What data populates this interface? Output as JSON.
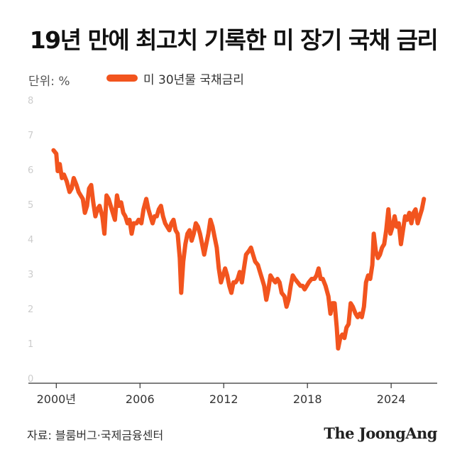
{
  "header": {
    "title": "19년 만에 최고치 기록한 미 장기 국채 금리",
    "unit_label": "단위: %",
    "legend_label": "미 30년물 국채금리"
  },
  "footer": {
    "source": "자료: 블룸버그·국제금융센터",
    "brand": "The JoongAng"
  },
  "colors": {
    "series": "#f2541e",
    "axis": "#333333",
    "tick_text": "#cccccc",
    "x_tick_text": "#333333"
  },
  "chart_data": {
    "type": "line",
    "title": "19년 만에 최고치 기록한 미 장기 국채 금리",
    "unit": "%",
    "ylim": [
      0,
      8
    ],
    "yticks": [
      0,
      1,
      2,
      3,
      4,
      5,
      6,
      7,
      8
    ],
    "xlim": [
      1998.0,
      2027.3
    ],
    "xticks": [
      {
        "value": 2000,
        "label": "2000년"
      },
      {
        "value": 2006,
        "label": "2006"
      },
      {
        "value": 2012,
        "label": "2012"
      },
      {
        "value": 2018,
        "label": "2018"
      },
      {
        "value": 2024,
        "label": "2024"
      }
    ],
    "grid": false,
    "legend_position": "top-left",
    "series": [
      {
        "name": "미 30년물 국채금리",
        "points": [
          [
            1999.8,
            6.7
          ],
          [
            2000.0,
            6.6
          ],
          [
            2000.1,
            6.1
          ],
          [
            2000.25,
            6.3
          ],
          [
            2000.4,
            5.9
          ],
          [
            2000.55,
            6.0
          ],
          [
            2000.75,
            5.8
          ],
          [
            2000.95,
            5.5
          ],
          [
            2001.1,
            5.6
          ],
          [
            2001.25,
            5.9
          ],
          [
            2001.45,
            5.7
          ],
          [
            2001.6,
            5.5
          ],
          [
            2001.75,
            5.4
          ],
          [
            2001.9,
            5.3
          ],
          [
            2002.05,
            4.9
          ],
          [
            2002.2,
            5.1
          ],
          [
            2002.35,
            5.6
          ],
          [
            2002.5,
            5.7
          ],
          [
            2002.65,
            5.2
          ],
          [
            2002.8,
            4.8
          ],
          [
            2002.95,
            5.0
          ],
          [
            2003.1,
            5.1
          ],
          [
            2003.3,
            4.8
          ],
          [
            2003.45,
            4.3
          ],
          [
            2003.6,
            5.4
          ],
          [
            2003.75,
            5.3
          ],
          [
            2003.9,
            5.1
          ],
          [
            2004.05,
            4.9
          ],
          [
            2004.2,
            4.7
          ],
          [
            2004.35,
            5.4
          ],
          [
            2004.5,
            5.1
          ],
          [
            2004.65,
            5.2
          ],
          [
            2004.8,
            4.9
          ],
          [
            2004.95,
            4.8
          ],
          [
            2005.1,
            4.6
          ],
          [
            2005.25,
            4.7
          ],
          [
            2005.4,
            4.3
          ],
          [
            2005.55,
            4.6
          ],
          [
            2005.75,
            4.6
          ],
          [
            2005.9,
            4.7
          ],
          [
            2006.1,
            4.6
          ],
          [
            2006.25,
            5.0
          ],
          [
            2006.45,
            5.3
          ],
          [
            2006.6,
            5.0
          ],
          [
            2006.75,
            4.8
          ],
          [
            2006.9,
            4.6
          ],
          [
            2007.05,
            4.8
          ],
          [
            2007.2,
            4.8
          ],
          [
            2007.35,
            5.0
          ],
          [
            2007.5,
            5.1
          ],
          [
            2007.65,
            4.8
          ],
          [
            2007.8,
            4.6
          ],
          [
            2007.95,
            4.5
          ],
          [
            2008.1,
            4.4
          ],
          [
            2008.25,
            4.6
          ],
          [
            2008.4,
            4.7
          ],
          [
            2008.55,
            4.4
          ],
          [
            2008.7,
            4.3
          ],
          [
            2008.85,
            3.6
          ],
          [
            2008.95,
            2.6
          ],
          [
            2009.1,
            3.5
          ],
          [
            2009.25,
            4.0
          ],
          [
            2009.4,
            4.3
          ],
          [
            2009.55,
            4.4
          ],
          [
            2009.7,
            4.1
          ],
          [
            2009.85,
            4.3
          ],
          [
            2010.0,
            4.6
          ],
          [
            2010.15,
            4.5
          ],
          [
            2010.3,
            4.3
          ],
          [
            2010.45,
            4.0
          ],
          [
            2010.6,
            3.7
          ],
          [
            2010.75,
            4.0
          ],
          [
            2010.9,
            4.3
          ],
          [
            2011.05,
            4.7
          ],
          [
            2011.2,
            4.5
          ],
          [
            2011.35,
            4.2
          ],
          [
            2011.5,
            3.9
          ],
          [
            2011.65,
            3.3
          ],
          [
            2011.8,
            2.9
          ],
          [
            2011.95,
            3.1
          ],
          [
            2012.1,
            3.3
          ],
          [
            2012.25,
            3.1
          ],
          [
            2012.4,
            2.8
          ],
          [
            2012.55,
            2.6
          ],
          [
            2012.7,
            2.9
          ],
          [
            2012.85,
            2.9
          ],
          [
            2013.0,
            3.0
          ],
          [
            2013.15,
            3.2
          ],
          [
            2013.3,
            2.9
          ],
          [
            2013.45,
            3.3
          ],
          [
            2013.6,
            3.7
          ],
          [
            2013.8,
            3.8
          ],
          [
            2013.95,
            3.9
          ],
          [
            2014.1,
            3.7
          ],
          [
            2014.25,
            3.5
          ],
          [
            2014.45,
            3.4
          ],
          [
            2014.6,
            3.2
          ],
          [
            2014.75,
            3.0
          ],
          [
            2014.9,
            2.8
          ],
          [
            2015.05,
            2.4
          ],
          [
            2015.2,
            2.7
          ],
          [
            2015.35,
            3.1
          ],
          [
            2015.5,
            3.0
          ],
          [
            2015.7,
            2.9
          ],
          [
            2015.85,
            3.0
          ],
          [
            2016.0,
            2.9
          ],
          [
            2016.15,
            2.6
          ],
          [
            2016.35,
            2.5
          ],
          [
            2016.5,
            2.2
          ],
          [
            2016.65,
            2.4
          ],
          [
            2016.8,
            2.8
          ],
          [
            2016.95,
            3.1
          ],
          [
            2017.1,
            3.0
          ],
          [
            2017.3,
            2.9
          ],
          [
            2017.5,
            2.8
          ],
          [
            2017.65,
            2.8
          ],
          [
            2017.8,
            2.7
          ],
          [
            2017.95,
            2.8
          ],
          [
            2018.1,
            2.9
          ],
          [
            2018.3,
            3.0
          ],
          [
            2018.5,
            3.0
          ],
          [
            2018.65,
            3.1
          ],
          [
            2018.8,
            3.3
          ],
          [
            2018.95,
            3.0
          ],
          [
            2019.1,
            3.0
          ],
          [
            2019.3,
            2.8
          ],
          [
            2019.5,
            2.5
          ],
          [
            2019.65,
            2.0
          ],
          [
            2019.8,
            2.3
          ],
          [
            2019.95,
            2.3
          ],
          [
            2020.1,
            1.6
          ],
          [
            2020.2,
            1.0
          ],
          [
            2020.35,
            1.3
          ],
          [
            2020.5,
            1.4
          ],
          [
            2020.65,
            1.3
          ],
          [
            2020.8,
            1.6
          ],
          [
            2020.95,
            1.7
          ],
          [
            2021.1,
            2.3
          ],
          [
            2021.25,
            2.2
          ],
          [
            2021.45,
            2.0
          ],
          [
            2021.6,
            1.9
          ],
          [
            2021.75,
            2.0
          ],
          [
            2021.9,
            1.9
          ],
          [
            2022.05,
            2.2
          ],
          [
            2022.2,
            2.9
          ],
          [
            2022.35,
            3.1
          ],
          [
            2022.5,
            3.0
          ],
          [
            2022.65,
            3.4
          ],
          [
            2022.75,
            4.3
          ],
          [
            2022.9,
            3.8
          ],
          [
            2023.05,
            3.6
          ],
          [
            2023.2,
            3.7
          ],
          [
            2023.35,
            3.9
          ],
          [
            2023.5,
            4.0
          ],
          [
            2023.65,
            4.4
          ],
          [
            2023.8,
            5.0
          ],
          [
            2023.95,
            4.3
          ],
          [
            2024.1,
            4.5
          ],
          [
            2024.25,
            4.8
          ],
          [
            2024.4,
            4.5
          ],
          [
            2024.55,
            4.6
          ],
          [
            2024.7,
            4.0
          ],
          [
            2024.85,
            4.4
          ],
          [
            2025.0,
            4.8
          ],
          [
            2025.15,
            4.7
          ],
          [
            2025.3,
            4.9
          ],
          [
            2025.45,
            4.6
          ],
          [
            2025.6,
            4.9
          ],
          [
            2025.75,
            5.0
          ],
          [
            2025.9,
            4.6
          ],
          [
            2026.05,
            4.8
          ],
          [
            2026.2,
            5.0
          ],
          [
            2026.35,
            5.3
          ]
        ]
      }
    ]
  }
}
